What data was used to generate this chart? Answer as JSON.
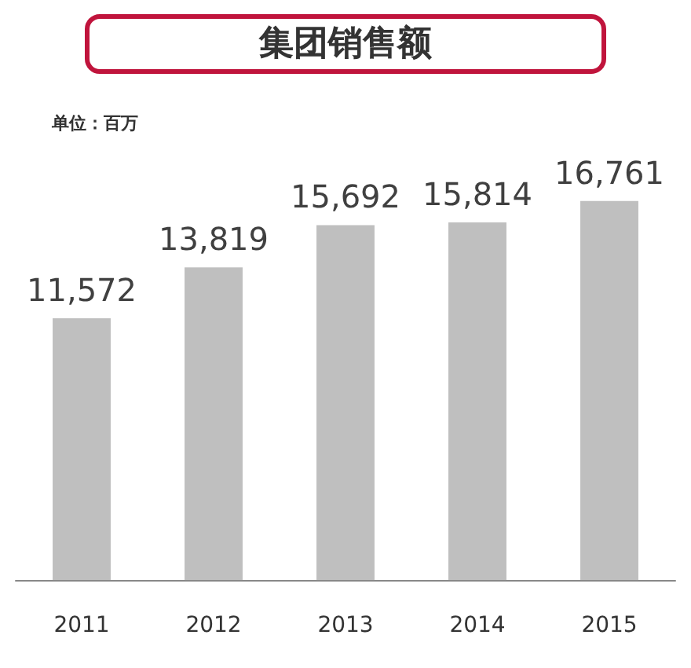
{
  "chart_data": {
    "type": "bar",
    "title": "集团销售额",
    "subtitle": "单位：百万",
    "categories": [
      "2011",
      "2012",
      "2013",
      "2014",
      "2015"
    ],
    "values": [
      11572,
      13819,
      15692,
      15814,
      16761
    ],
    "color": "#bfbfbf",
    "value_labels": [
      "11,572",
      "13,819",
      "15,692",
      "15,814",
      "16,761"
    ],
    "tick_labels": "x"
  }
}
